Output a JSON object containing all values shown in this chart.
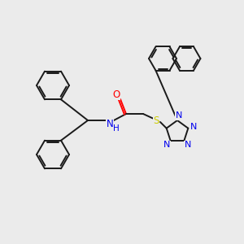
{
  "background_color": "#ebebeb",
  "bond_color": "#1a1a1a",
  "atom_colors": {
    "O": "#ff0000",
    "N": "#0000ee",
    "S": "#cccc00",
    "C": "#1a1a1a"
  },
  "figsize": [
    3.0,
    3.0
  ],
  "dpi": 100,
  "lw": 1.4,
  "ring_r": 17,
  "naph_r": 17
}
